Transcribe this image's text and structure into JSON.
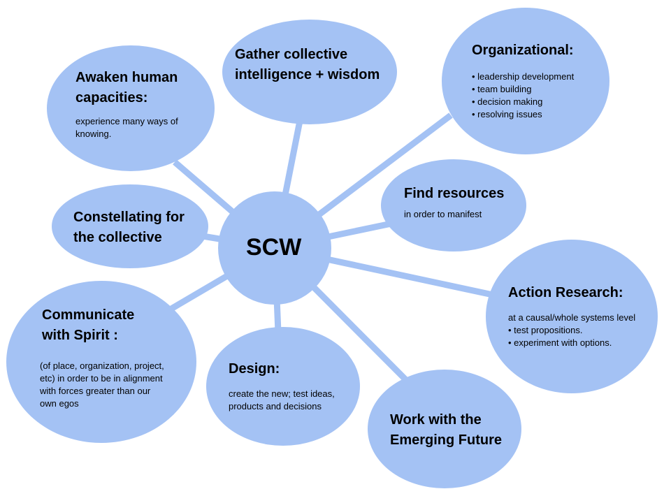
{
  "colors": {
    "bubble": "#a4c2f4",
    "connector": "#a4c2f4",
    "text": "#000000"
  },
  "center": {
    "label": "SCW"
  },
  "nodes": {
    "awaken": {
      "title": [
        "Awaken human",
        "capacities:"
      ],
      "desc": [
        "experience many ways of",
        "knowing."
      ]
    },
    "gather": {
      "title": [
        "Gather collective",
        "intelligence + wisdom"
      ],
      "desc": []
    },
    "organizational": {
      "title": [
        "Organizational:"
      ],
      "desc": [
        "• leadership development",
        "• team building",
        "• decision making",
        "• resolving issues"
      ]
    },
    "find_resources": {
      "title": [
        "Find resources"
      ],
      "desc": [
        "in order to manifest"
      ]
    },
    "constellating": {
      "title": [
        "Constellating for",
        "the collective"
      ],
      "desc": []
    },
    "action_research": {
      "title": [
        "Action Research:"
      ],
      "desc": [
        "at a causal/whole systems level",
        "• test propositions.",
        "• experiment with options."
      ]
    },
    "communicate": {
      "title": [
        "Communicate",
        "with Spirit :"
      ],
      "desc": [
        "(of place, organization, project,",
        "etc) in order to be in alignment",
        "with forces greater than our",
        "own egos"
      ]
    },
    "design": {
      "title": [
        "Design:"
      ],
      "desc": [
        "create the new; test ideas,",
        "products and decisions"
      ]
    },
    "emerging_future": {
      "title": [
        "Work with the",
        "Emerging Future"
      ],
      "desc": []
    }
  }
}
